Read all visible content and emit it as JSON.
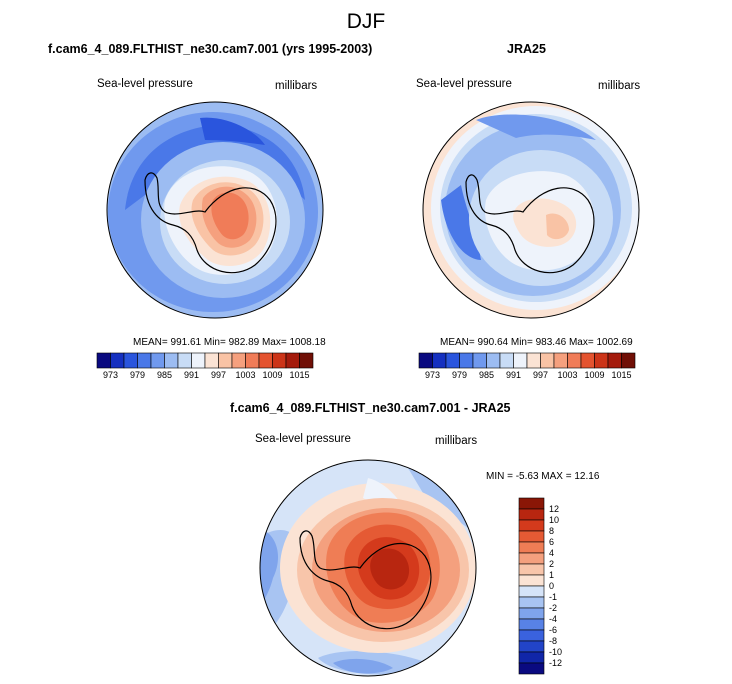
{
  "main_title": "DJF",
  "panels": {
    "model": {
      "title": "f.cam6_4_089.FLTHIST_ne30.cam7.001 (yrs 1995-2003)",
      "left_label": "Sea-level pressure",
      "right_label": "millibars",
      "stats": "MEAN= 991.61   Min= 982.89   Max= 1008.18"
    },
    "obs": {
      "title": "JRA25",
      "left_label": "Sea-level pressure",
      "right_label": "millibars",
      "stats": "MEAN= 990.64   Min= 983.46   Max= 1002.69"
    },
    "diff": {
      "title": "f.cam6_4_089.FLTHIST_ne30.cam7.001 - JRA25",
      "left_label": "Sea-level pressure",
      "right_label": "millibars",
      "stats": "MIN =  -5.63 MAX =  12.16"
    }
  },
  "colorbars": {
    "abs_labels": [
      "973",
      "979",
      "985",
      "991",
      "997",
      "1003",
      "1009",
      "1015"
    ],
    "abs_colors": [
      "#0a0a80",
      "#1530c0",
      "#2a55dd",
      "#4a78e8",
      "#7099ee",
      "#9cbcf2",
      "#c8dcf6",
      "#eef3fb",
      "#fbe3d4",
      "#f9c3a5",
      "#f5a07e",
      "#f07c58",
      "#e4532f",
      "#cc3418",
      "#a41b0c",
      "#700f06"
    ],
    "diff_labels": [
      "12",
      "10",
      "8",
      "6",
      "4",
      "2",
      "1",
      "0",
      "-1",
      "-2",
      "-4",
      "-6",
      "-8",
      "-10",
      "-12"
    ],
    "diff_colors": [
      "#8a1606",
      "#b82610",
      "#d43a1c",
      "#e55a34",
      "#ef7d55",
      "#f4a07e",
      "#f8c5aa",
      "#fbe3d4",
      "#d6e4f8",
      "#a8c4f2",
      "#7fa4ec",
      "#5882e6",
      "#3a62de",
      "#2244c8",
      "#1026a8",
      "#0a0a80"
    ]
  }
}
